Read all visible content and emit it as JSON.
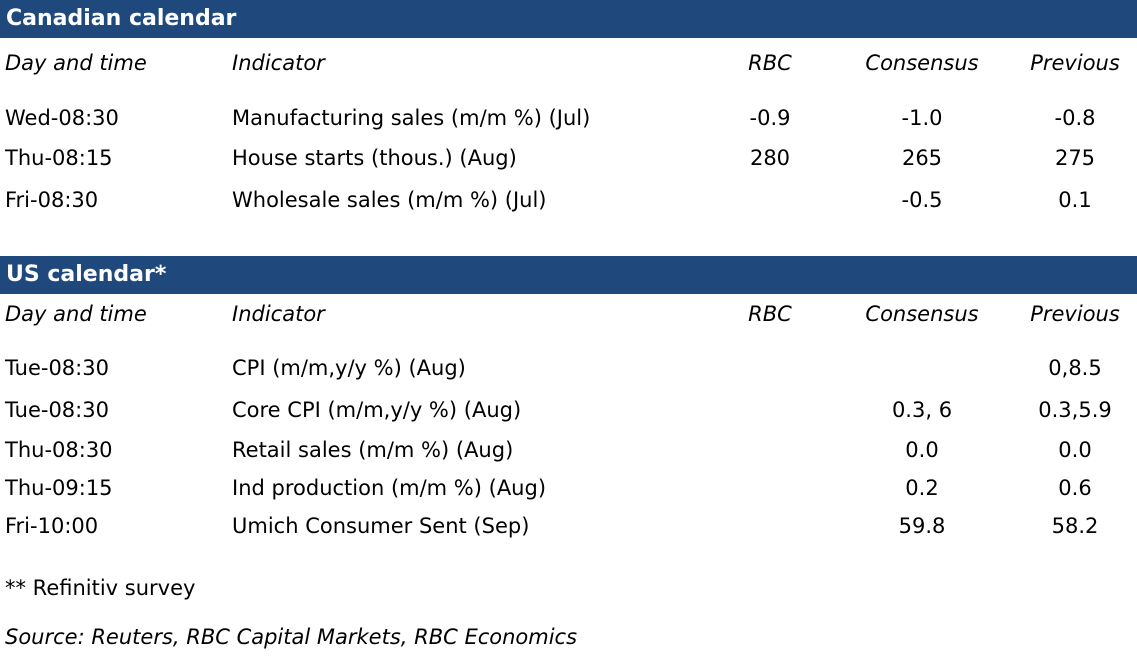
{
  "canadian": {
    "title": "Canadian calendar",
    "headers": {
      "day": "Day and time",
      "indicator": "Indicator",
      "rbc": "RBC",
      "consensus": "Consensus",
      "previous": "Previous"
    },
    "rows": [
      {
        "day": "Wed-08:30",
        "indicator": "Manufacturing sales (m/m %) (Jul)",
        "rbc": "-0.9",
        "consensus": "-1.0",
        "previous": "-0.8"
      },
      {
        "day": "Thu-08:15",
        "indicator": "House starts (thous.) (Aug)",
        "rbc": "280",
        "consensus": "265",
        "previous": "275"
      },
      {
        "day": "Fri-08:30",
        "indicator": "Wholesale sales (m/m %) (Jul)",
        "rbc": "",
        "consensus": "-0.5",
        "previous": "0.1"
      }
    ]
  },
  "us": {
    "title": "US calendar*",
    "headers": {
      "day": "Day and time",
      "indicator": "Indicator",
      "rbc": "RBC",
      "consensus": "Consensus",
      "previous": "Previous"
    },
    "rows": [
      {
        "day": "Tue-08:30",
        "indicator": "CPI (m/m,y/y %) (Aug)",
        "rbc": "",
        "consensus": "",
        "previous": "0,8.5"
      },
      {
        "day": "Tue-08:30",
        "indicator": "Core CPI (m/m,y/y %) (Aug)",
        "rbc": "",
        "consensus": "0.3, 6",
        "previous": "0.3,5.9"
      },
      {
        "day": "Thu-08:30",
        "indicator": "Retail sales (m/m %) (Aug)",
        "rbc": "",
        "consensus": "0.0",
        "previous": "0.0"
      },
      {
        "day": "Thu-09:15",
        "indicator": "Ind production (m/m %) (Aug)",
        "rbc": "",
        "consensus": "0.2",
        "previous": "0.6"
      },
      {
        "day": "Fri-10:00",
        "indicator": "Umich Consumer Sent (Sep)",
        "rbc": "",
        "consensus": "59.8",
        "previous": "58.2"
      }
    ]
  },
  "footnote": "** Refinitiv survey",
  "source": "Source: Reuters, RBC Capital Markets, RBC Economics",
  "colors": {
    "band": "#1f497d"
  }
}
